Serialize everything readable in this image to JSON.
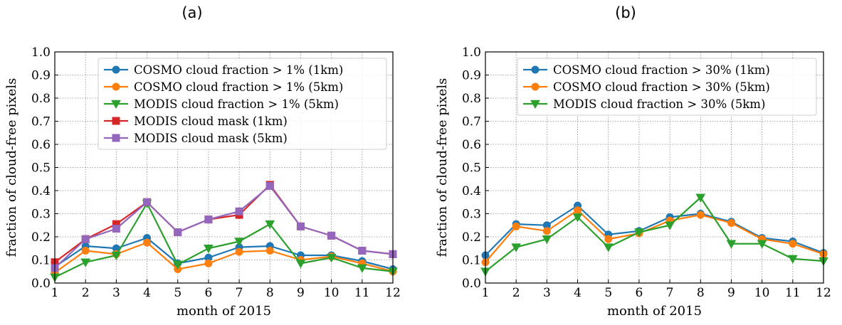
{
  "chart_data": [
    {
      "panel_label": "(a)",
      "type": "line",
      "xlabel": "month of 2015",
      "ylabel": "fraction of cloud-free pixels",
      "xlim": [
        1,
        12
      ],
      "ylim": [
        0.0,
        1.0
      ],
      "grid": true,
      "legend_position": "upper-right",
      "x": [
        1,
        2,
        3,
        4,
        5,
        6,
        7,
        8,
        9,
        10,
        11,
        12
      ],
      "x_ticks": [
        "1",
        "2",
        "3",
        "4",
        "5",
        "6",
        "7",
        "8",
        "9",
        "10",
        "11",
        "12"
      ],
      "y_ticks": [
        "0.0",
        "0.1",
        "0.2",
        "0.3",
        "0.4",
        "0.5",
        "0.6",
        "0.7",
        "0.8",
        "0.9",
        "1.0"
      ],
      "series": [
        {
          "name": "COSMO cloud fraction > 1% (1km)",
          "color": "#1f77b4",
          "marker": "circle",
          "values": [
            0.07,
            0.16,
            0.15,
            0.195,
            0.085,
            0.11,
            0.155,
            0.16,
            0.12,
            0.12,
            0.095,
            0.06
          ]
        },
        {
          "name": "COSMO cloud fraction > 1% (5km)",
          "color": "#ff7f0e",
          "marker": "circle",
          "values": [
            0.045,
            0.14,
            0.125,
            0.175,
            0.06,
            0.085,
            0.135,
            0.14,
            0.1,
            0.115,
            0.085,
            0.05
          ]
        },
        {
          "name": "MODIS cloud fraction > 1% (5km)",
          "color": "#2ca02c",
          "marker": "triangle-down",
          "values": [
            0.025,
            0.09,
            0.12,
            0.345,
            0.08,
            0.15,
            0.18,
            0.255,
            0.085,
            0.11,
            0.065,
            0.05
          ]
        },
        {
          "name": "MODIS cloud mask (1km)",
          "color": "#d62728",
          "marker": "square",
          "values": [
            0.09,
            0.19,
            0.255,
            0.35,
            0.22,
            0.275,
            0.295,
            0.425,
            0.245,
            0.205,
            0.14,
            0.125
          ]
        },
        {
          "name": "MODIS cloud mask (5km)",
          "color": "#9467bd",
          "marker": "square",
          "values": [
            0.065,
            0.19,
            0.235,
            0.35,
            0.22,
            0.275,
            0.31,
            0.42,
            0.245,
            0.205,
            0.14,
            0.125
          ]
        }
      ]
    },
    {
      "panel_label": "(b)",
      "type": "line",
      "xlabel": "month of 2015",
      "ylabel": "fraction of cloud-free pixels",
      "xlim": [
        1,
        12
      ],
      "ylim": [
        0.0,
        1.0
      ],
      "grid": true,
      "legend_position": "upper-right",
      "x": [
        1,
        2,
        3,
        4,
        5,
        6,
        7,
        8,
        9,
        10,
        11,
        12
      ],
      "x_ticks": [
        "1",
        "2",
        "3",
        "4",
        "5",
        "6",
        "7",
        "8",
        "9",
        "10",
        "11",
        "12"
      ],
      "y_ticks": [
        "0.0",
        "0.1",
        "0.2",
        "0.3",
        "0.4",
        "0.5",
        "0.6",
        "0.7",
        "0.8",
        "0.9",
        "1.0"
      ],
      "series": [
        {
          "name": "COSMO cloud fraction > 30% (1km)",
          "color": "#1f77b4",
          "marker": "circle",
          "values": [
            0.12,
            0.255,
            0.25,
            0.335,
            0.21,
            0.225,
            0.285,
            0.3,
            0.265,
            0.195,
            0.18,
            0.13
          ]
        },
        {
          "name": "COSMO cloud fraction > 30% (5km)",
          "color": "#ff7f0e",
          "marker": "circle",
          "values": [
            0.09,
            0.245,
            0.225,
            0.315,
            0.19,
            0.215,
            0.27,
            0.295,
            0.26,
            0.19,
            0.17,
            0.125
          ]
        },
        {
          "name": "MODIS cloud fraction > 30% (5km)",
          "color": "#2ca02c",
          "marker": "triangle-down",
          "values": [
            0.05,
            0.155,
            0.19,
            0.285,
            0.155,
            0.22,
            0.25,
            0.37,
            0.17,
            0.17,
            0.105,
            0.095
          ]
        }
      ]
    }
  ]
}
